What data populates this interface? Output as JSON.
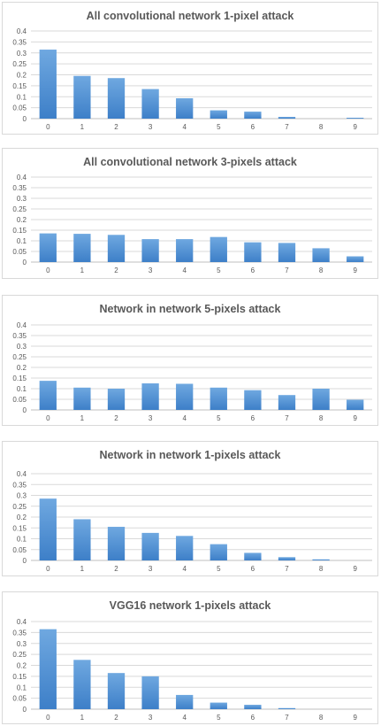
{
  "bar_color_top": "#6fa8e0",
  "bar_color_bottom": "#3d7fc8",
  "chart_data": [
    {
      "type": "bar",
      "title": "All convolutional network 1-pixel attack",
      "categories": [
        "0",
        "1",
        "2",
        "3",
        "4",
        "5",
        "6",
        "7",
        "8",
        "9"
      ],
      "values": [
        0.315,
        0.195,
        0.185,
        0.135,
        0.093,
        0.038,
        0.032,
        0.008,
        0.0,
        0.002
      ],
      "ylim": [
        0,
        0.4
      ],
      "yticks": [
        "0",
        "0.05",
        "0.1",
        "0.15",
        "0.2",
        "0.25",
        "0.3",
        "0.35",
        "0.4"
      ],
      "grid": true
    },
    {
      "type": "bar",
      "title": "All convolutional network 3-pixels attack",
      "categories": [
        "0",
        "1",
        "2",
        "3",
        "4",
        "5",
        "6",
        "7",
        "8",
        "9"
      ],
      "values": [
        0.135,
        0.133,
        0.128,
        0.108,
        0.108,
        0.118,
        0.093,
        0.09,
        0.065,
        0.027
      ],
      "ylim": [
        0,
        0.4
      ],
      "yticks": [
        "0",
        "0.05",
        "0.1",
        "0.15",
        "0.2",
        "0.25",
        "0.3",
        "0.35",
        "0.4"
      ],
      "grid": true
    },
    {
      "type": "bar",
      "title": "Network in network 5-pixels attack",
      "categories": [
        "0",
        "1",
        "2",
        "3",
        "4",
        "5",
        "6",
        "7",
        "8",
        "9"
      ],
      "values": [
        0.137,
        0.105,
        0.1,
        0.125,
        0.123,
        0.105,
        0.093,
        0.07,
        0.1,
        0.048
      ],
      "ylim": [
        0,
        0.4
      ],
      "yticks": [
        "0",
        "0.05",
        "0.1",
        "0.15",
        "0.2",
        "0.25",
        "0.3",
        "0.35",
        "0.4"
      ],
      "grid": true
    },
    {
      "type": "bar",
      "title": "Network in network 1-pixels attack",
      "categories": [
        "0",
        "1",
        "2",
        "3",
        "4",
        "5",
        "6",
        "7",
        "8",
        "9"
      ],
      "values": [
        0.285,
        0.19,
        0.155,
        0.127,
        0.113,
        0.075,
        0.035,
        0.015,
        0.005,
        0.0
      ],
      "ylim": [
        0,
        0.4
      ],
      "yticks": [
        "0",
        "0.05",
        "0.1",
        "0.15",
        "0.2",
        "0.25",
        "0.3",
        "0.35",
        "0.4"
      ],
      "grid": true
    },
    {
      "type": "bar",
      "title": "VGG16 network 1-pixels attack",
      "categories": [
        "0",
        "1",
        "2",
        "3",
        "4",
        "5",
        "6",
        "7",
        "8",
        "9"
      ],
      "values": [
        0.365,
        0.225,
        0.165,
        0.15,
        0.065,
        0.03,
        0.02,
        0.005,
        0.0,
        0.0
      ],
      "ylim": [
        0,
        0.4
      ],
      "yticks": [
        "0",
        "0.05",
        "0.1",
        "0.15",
        "0.2",
        "0.25",
        "0.3",
        "0.35",
        "0.4"
      ],
      "grid": true
    }
  ]
}
